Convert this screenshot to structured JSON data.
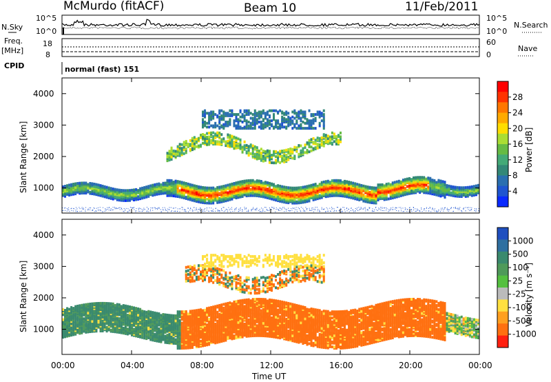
{
  "header": {
    "station": "McMurdo (fitACF)",
    "beam": "Beam 10",
    "date": "11/Feb/2011"
  },
  "noise_panel": {
    "left_label": "N.Sky",
    "right_label": "N.Search",
    "left_ticks": [
      "10^5",
      "10^0"
    ],
    "right_ticks": [
      "10^5",
      "10^0"
    ]
  },
  "freq_panel": {
    "left_label_line1": "Freq.",
    "left_label_line2": "[MHz]",
    "right_label": "Nave",
    "left_ticks": [
      "18",
      "8"
    ],
    "right_ticks": [
      "60",
      "0"
    ],
    "cpid_label": "CPID",
    "cpid_text": "normal (fast) 151"
  },
  "power_panel": {
    "ylabel": "Slant Range [km]",
    "yticks": [
      "4000",
      "3000",
      "2000",
      "1000"
    ],
    "colorbar_label": "Power [dB]",
    "colorbar_ticks": [
      "28",
      "24",
      "20",
      "16",
      "12",
      "8",
      "4"
    ],
    "colorbar_colors": [
      "#ff0000",
      "#ff3300",
      "#ff7700",
      "#ffaa00",
      "#ffdd00",
      "#aadd33",
      "#66bb44",
      "#44aa77",
      "#338877",
      "#2a6fb0",
      "#1f55d0",
      "#0a2aff"
    ]
  },
  "velocity_panel": {
    "ylabel": "Slant Range [km]",
    "yticks": [
      "4000",
      "3000",
      "2000",
      "1000"
    ],
    "colorbar_label": "Velocity [m s⁻¹]",
    "colorbar_ticks": [
      "1000",
      "500",
      "100",
      "25",
      "-25",
      "-100",
      "-500",
      "-1000"
    ],
    "colorbar_colors": [
      "#1f4fbf",
      "#2f6fa0",
      "#3a8a6e",
      "#4f9a5a",
      "#55c040",
      "#bbbbbb",
      "#ffe040",
      "#ffa020",
      "#ff7010",
      "#ff2010"
    ]
  },
  "x_axis": {
    "xlabel": "Time UT",
    "ticks": [
      "00:00",
      "04:00",
      "08:00",
      "12:00",
      "16:00",
      "20:00",
      "00:00"
    ]
  },
  "chart_data": [
    {
      "type": "heatmap",
      "title": "Power [dB]",
      "xlabel": "Time UT",
      "ylabel": "Slant Range [km]",
      "xlim": [
        0,
        24
      ],
      "ylim": [
        200,
        4500
      ],
      "clim": [
        0,
        30
      ],
      "note": "Scatter bands: main band near 1000 km range all day with peak power 24-28 dB from 07:00 to 21:00; patchy echoes 2000-3500 km."
    },
    {
      "type": "heatmap",
      "title": "Velocity [m s-1]",
      "xlabel": "Time UT",
      "ylabel": "Slant Range [km]",
      "xlim": [
        0,
        24
      ],
      "ylim": [
        200,
        4500
      ],
      "clim": [
        -1000,
        1000
      ],
      "note": "Velocity 100-500 m/s (green) 00:00-07:00, -100 to -500 m/s (orange) 07:00-22:00 in 700-2200 km band."
    }
  ]
}
